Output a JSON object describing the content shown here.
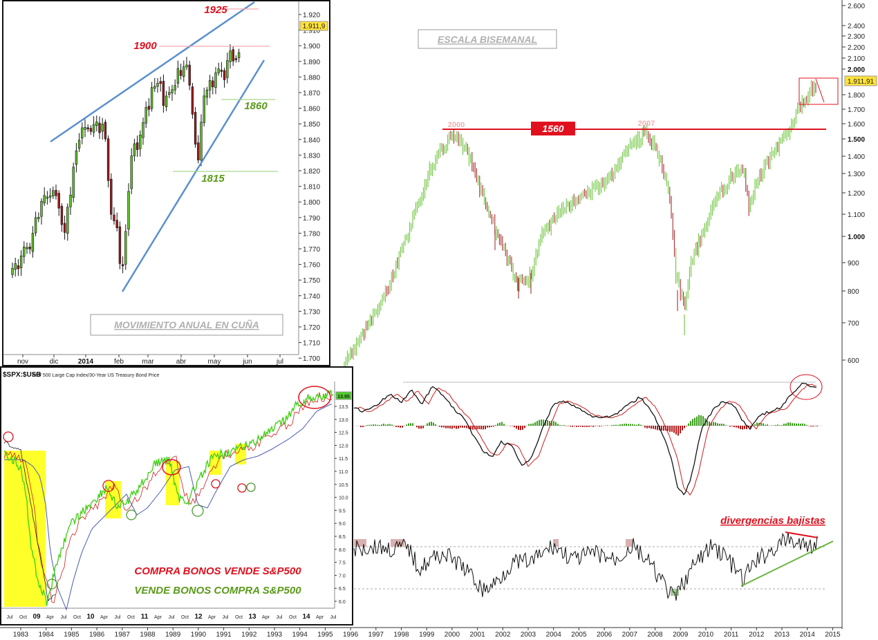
{
  "main_chart": {
    "title": "ESCALA BISEMANAL",
    "price_axis": [
      "2.600",
      "2.400",
      "2.300",
      "2.200",
      "2.100",
      "2.000",
      "1.800",
      "1.700",
      "1.600",
      "1.500",
      "1.400",
      "1.300",
      "1.200",
      "1.100",
      "1.000",
      "900",
      "800",
      "700",
      "600"
    ],
    "last_price": "1.911,91",
    "level_label": "1560",
    "peak_labels": [
      "2000",
      "2007"
    ],
    "year_axis": [
      "1983",
      "1984",
      "1985",
      "1986",
      "1987",
      "1988",
      "1989",
      "1990",
      "1991",
      "1992",
      "1993",
      "1994",
      "1995",
      "1996",
      "1997",
      "1998",
      "1999",
      "2000",
      "2001",
      "2002",
      "2003",
      "2004",
      "2005",
      "2006",
      "2007",
      "2008",
      "2009",
      "2010",
      "2011",
      "2012",
      "2013",
      "2014",
      "2015"
    ],
    "divergence_label": "divergencias bajistas"
  },
  "wedge_chart": {
    "title": "MOVIMIENTO ANUAL EN CUÑA",
    "price_axis": [
      "1.920",
      "1.910",
      "1.900",
      "1.890",
      "1.880",
      "1.870",
      "1.860",
      "1.850",
      "1.840",
      "1.830",
      "1.820",
      "1.810",
      "1.800",
      "1.790",
      "1.780",
      "1.770",
      "1.760",
      "1.750",
      "1.740",
      "1.730",
      "1.720",
      "1.710",
      "1.700"
    ],
    "last_price": "1.911,9",
    "levels": [
      "1925",
      "1900",
      "1860",
      "1815"
    ],
    "month_axis": [
      "nov",
      "dic",
      "2014",
      "feb",
      "mar",
      "abr",
      "may",
      "jun",
      "jul"
    ]
  },
  "ratio_chart": {
    "title": "$SPX:$USB",
    "subtitle": "S&P 500 Large Cap Index/30-Year US Treasury Bond Price",
    "price_axis": [
      "13.5",
      "13.0",
      "12.5",
      "12.0",
      "11.5",
      "11.0",
      "10.5",
      "10.0",
      "9.5",
      "9.0",
      "8.5",
      "8.0",
      "7.5",
      "7.0",
      "6.5",
      "6.0"
    ],
    "last_value": "13.95",
    "month_axis": [
      "Jul",
      "Oct",
      "09",
      "Apr",
      "Jul",
      "Oct",
      "10",
      "Apr",
      "Jul",
      "Oct",
      "11",
      "Apr",
      "Jul",
      "Oct",
      "12",
      "Apr",
      "Jul",
      "Oct",
      "13",
      "Apr",
      "Jul",
      "Oct",
      "14",
      "Apr",
      "Jul"
    ],
    "note_red": "COMPRA BONOS VENDE S&P500",
    "note_green": "VENDE BONOS COMPRA S&P500"
  },
  "colors": {
    "up": "#5fbf2a",
    "down": "#a01a1a",
    "trend": "#5b8fd0",
    "level": "#e0101e",
    "highlight": "#ffff2a"
  }
}
